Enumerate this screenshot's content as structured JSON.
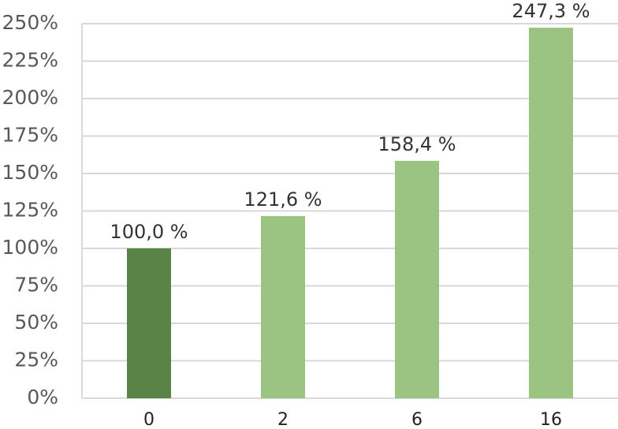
{
  "chart_data": {
    "type": "bar",
    "categories": [
      "0",
      "2",
      "6",
      "16"
    ],
    "values": [
      100.0,
      121.6,
      158.4,
      247.3
    ],
    "value_labels": [
      "100,0 %",
      "121,6 %",
      "158,4 %",
      "247,3 %"
    ],
    "colors": [
      "#5a8447",
      "#9bc482",
      "#9bc482",
      "#9bc482"
    ],
    "ylim": [
      0,
      250
    ],
    "yticks": [
      {
        "value": 0,
        "label": "0%"
      },
      {
        "value": 25,
        "label": "25%"
      },
      {
        "value": 50,
        "label": "50%"
      },
      {
        "value": 75,
        "label": "75%"
      },
      {
        "value": 100,
        "label": "100%"
      },
      {
        "value": 125,
        "label": "125%"
      },
      {
        "value": 150,
        "label": "150%"
      },
      {
        "value": 175,
        "label": "175%"
      },
      {
        "value": 200,
        "label": "200%"
      },
      {
        "value": 225,
        "label": "225%"
      },
      {
        "value": 250,
        "label": "250%"
      }
    ],
    "grid": true
  }
}
